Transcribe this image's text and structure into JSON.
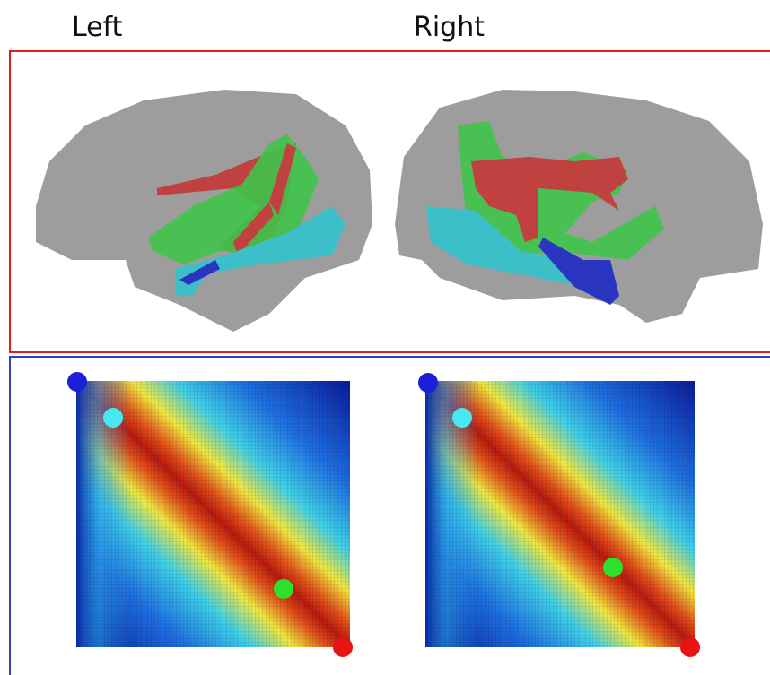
{
  "header": {
    "left": "Left",
    "right": "Right"
  }
}
